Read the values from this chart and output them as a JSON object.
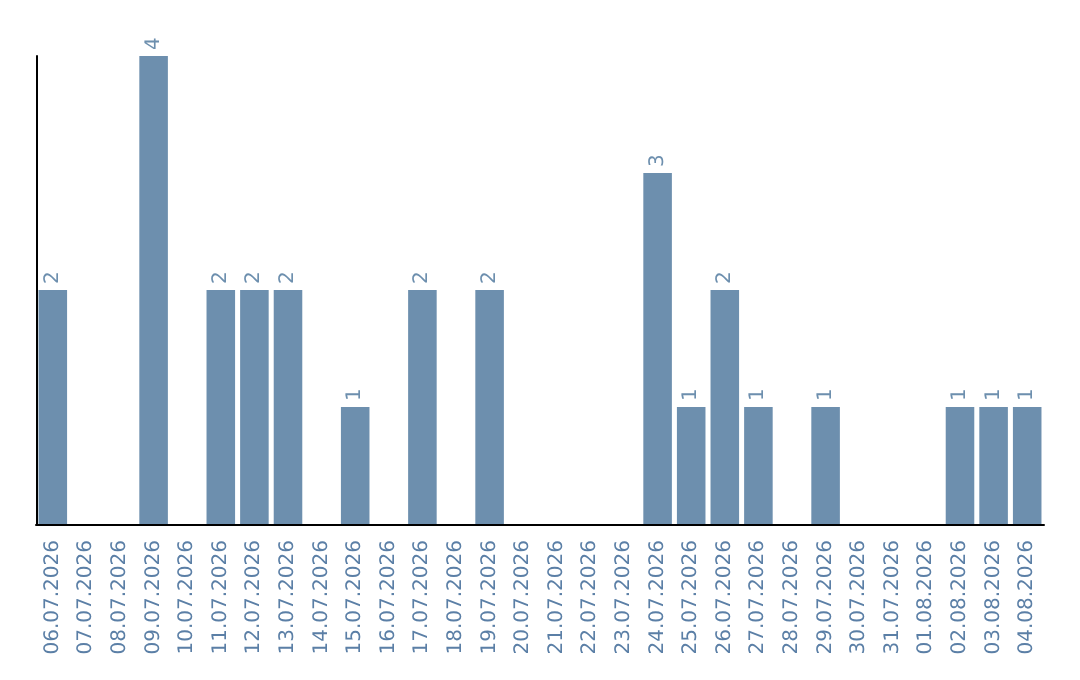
{
  "chart_data": {
    "type": "bar",
    "categories": [
      "06.07.2026",
      "07.07.2026",
      "08.07.2026",
      "09.07.2026",
      "10.07.2026",
      "11.07.2026",
      "12.07.2026",
      "13.07.2026",
      "14.07.2026",
      "15.07.2026",
      "16.07.2026",
      "17.07.2026",
      "18.07.2026",
      "19.07.2026",
      "20.07.2026",
      "21.07.2026",
      "22.07.2026",
      "23.07.2026",
      "24.07.2026",
      "25.07.2026",
      "26.07.2026",
      "27.07.2026",
      "28.07.2026",
      "29.07.2026",
      "30.07.2026",
      "31.07.2026",
      "01.08.2026",
      "02.08.2026",
      "03.08.2026",
      "04.08.2026"
    ],
    "values": [
      2,
      0,
      0,
      4,
      0,
      2,
      2,
      2,
      0,
      1,
      0,
      2,
      0,
      2,
      0,
      0,
      0,
      0,
      3,
      1,
      2,
      1,
      0,
      1,
      0,
      0,
      0,
      1,
      1,
      1
    ],
    "value_labels": [
      "2",
      null,
      null,
      "4",
      null,
      "2",
      "2",
      "2",
      null,
      "1",
      null,
      "2",
      null,
      "2",
      null,
      null,
      null,
      null,
      "3",
      "1",
      "2",
      "1",
      null,
      "1",
      null,
      null,
      null,
      "1",
      "1",
      "1"
    ],
    "color": "#6d8fae",
    "ylim": [
      0,
      4
    ],
    "tick_labels": "x"
  }
}
